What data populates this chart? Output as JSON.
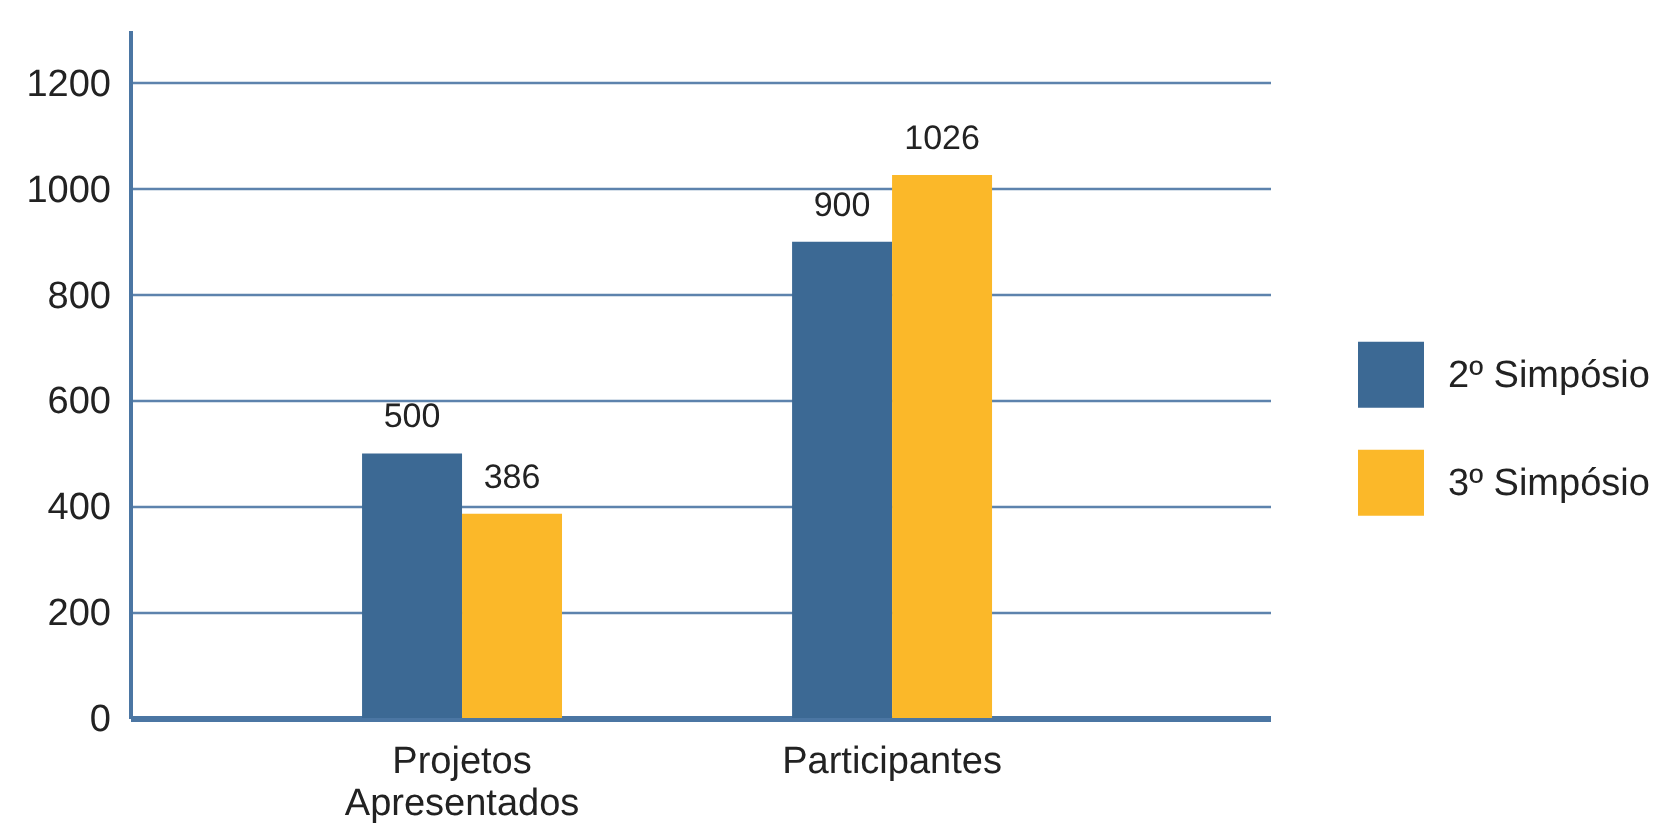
{
  "chart_data": {
    "type": "bar",
    "categories": [
      "Projetos Apresentados",
      "Participantes"
    ],
    "series": [
      {
        "name": "2º Simpósio",
        "color": "#3c6994",
        "values": [
          500,
          900
        ]
      },
      {
        "name": "3º Simpósio",
        "color": "#fbb829",
        "values": [
          386,
          1026
        ]
      }
    ],
    "ylim": [
      0,
      1300
    ],
    "yticks": [
      0,
      200,
      400,
      600,
      800,
      1000,
      1200
    ],
    "grid": "y",
    "legend": "right",
    "data_labels": true
  }
}
